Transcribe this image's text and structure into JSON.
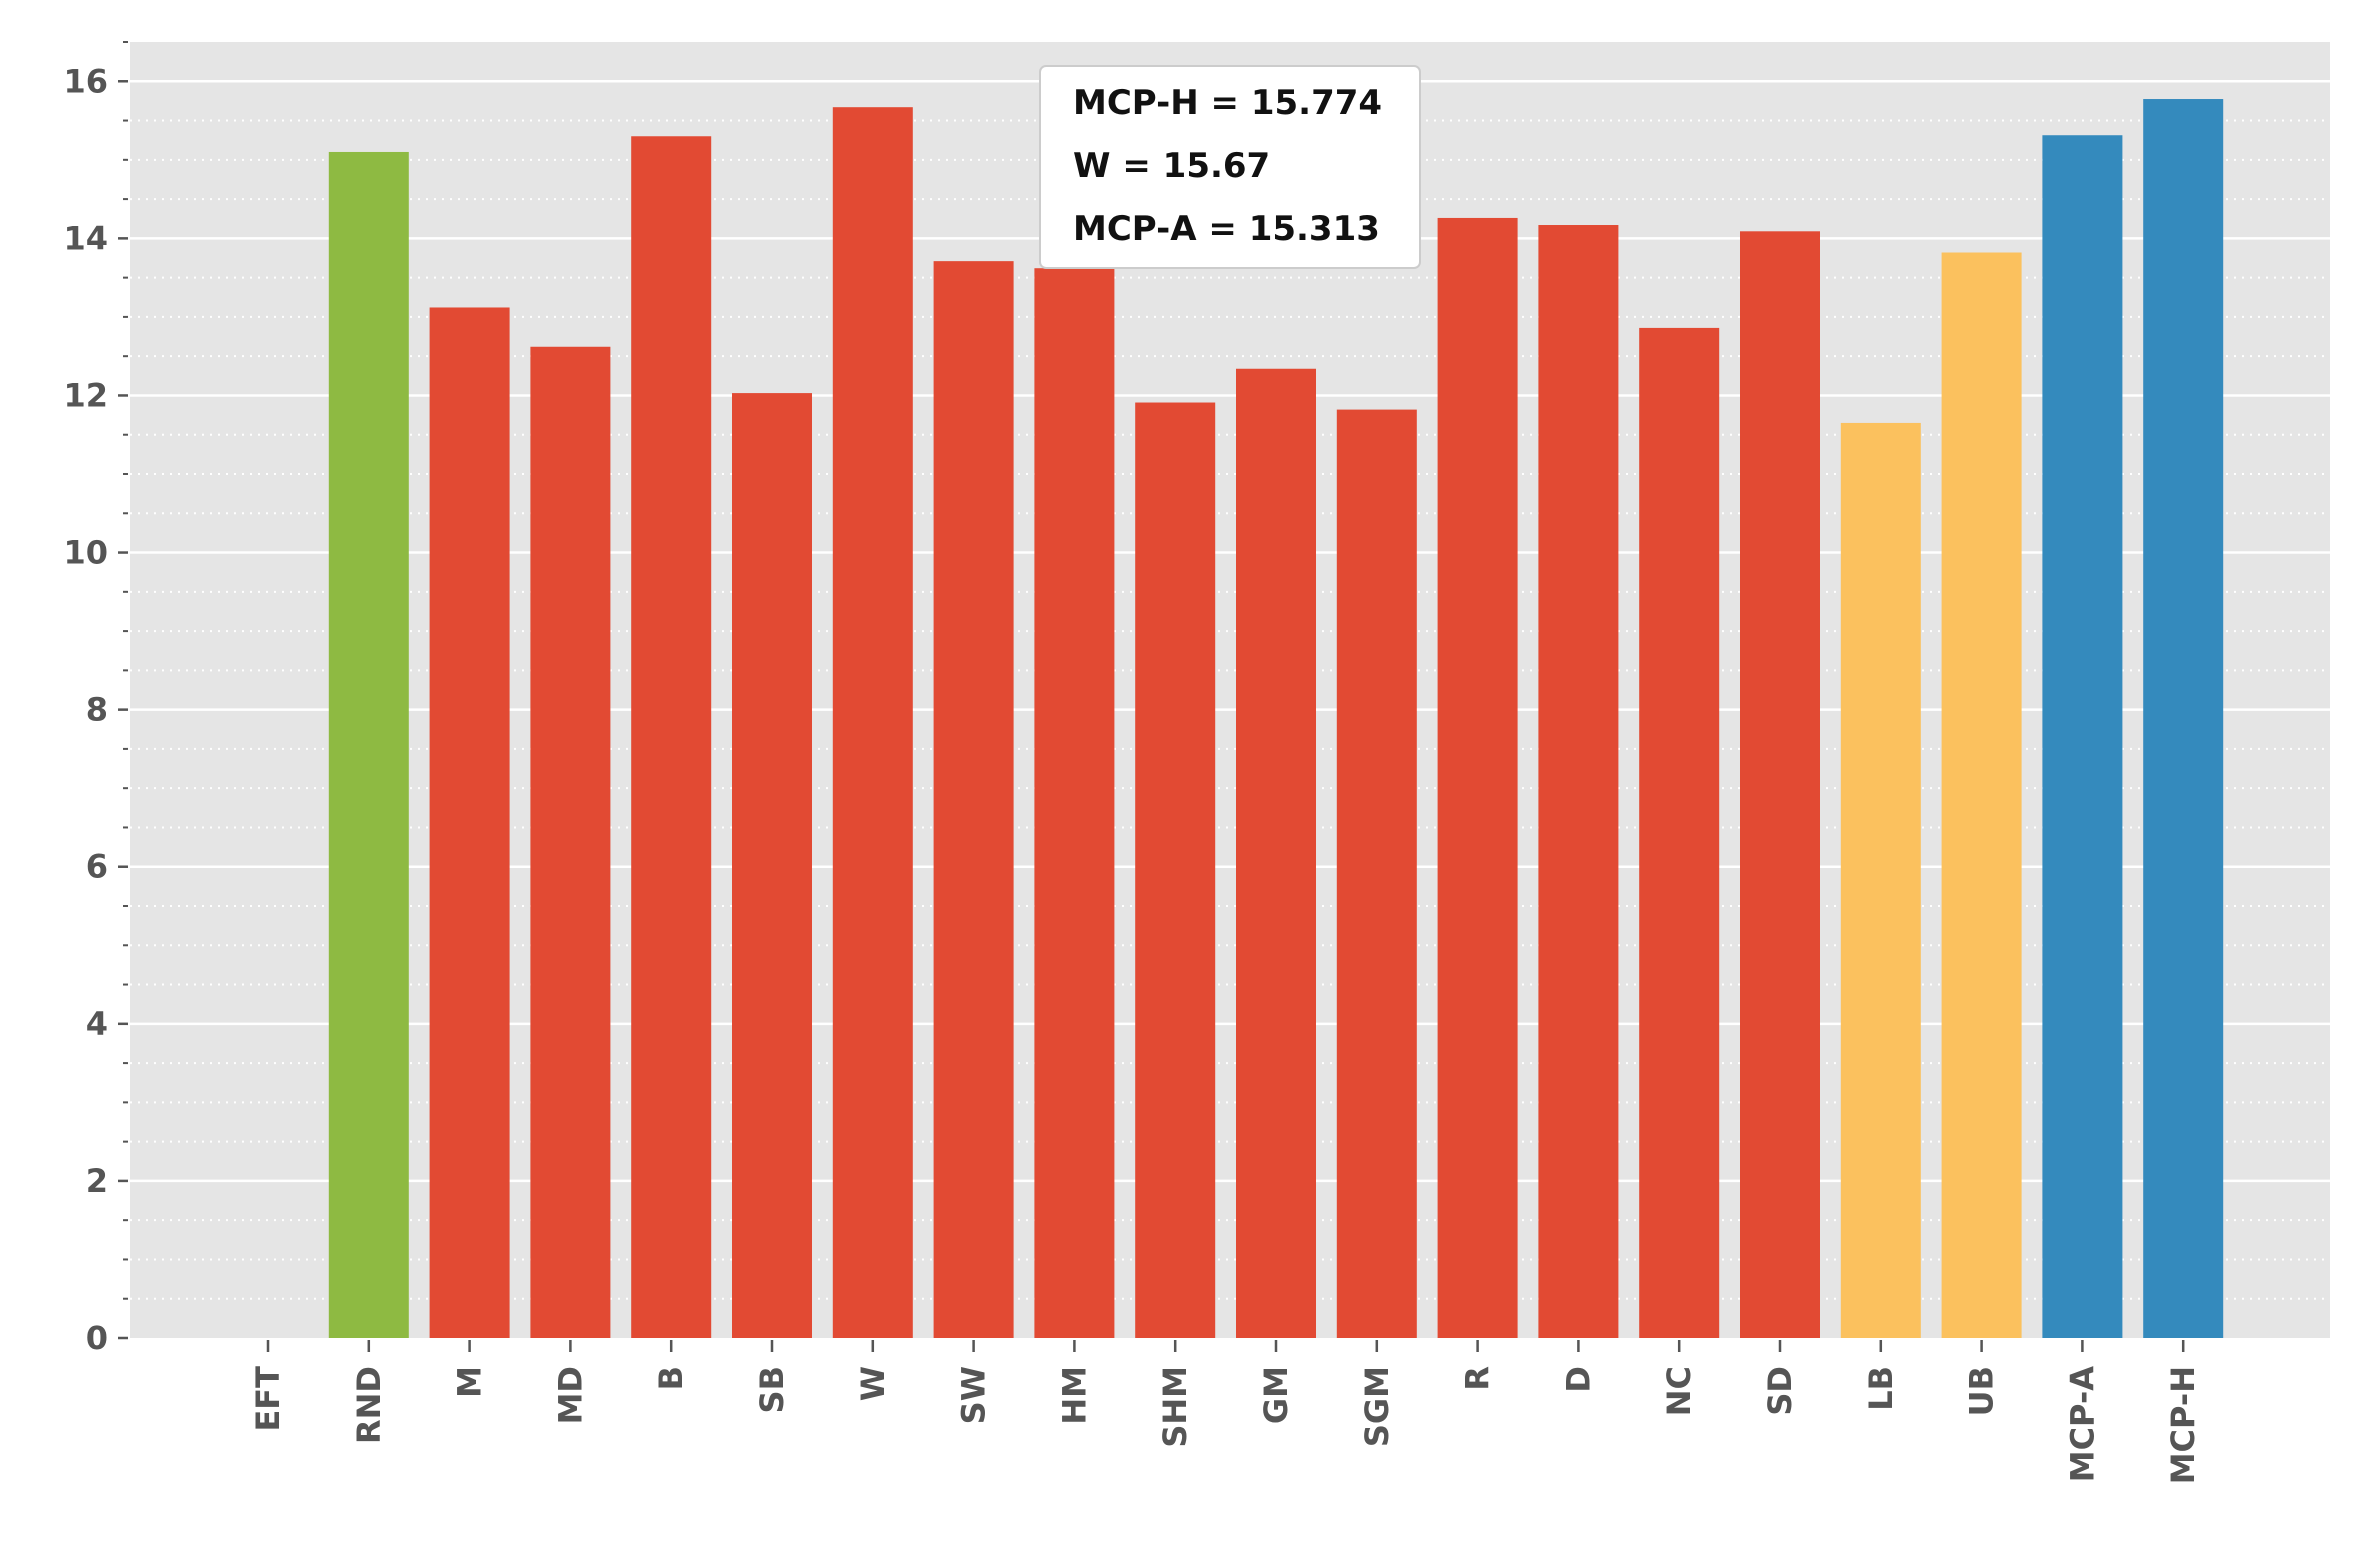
{
  "chart_data": {
    "type": "bar",
    "title": "",
    "xlabel": "",
    "ylabel": "",
    "ylim": [
      0,
      16.5
    ],
    "yticks": [
      0,
      2,
      4,
      6,
      8,
      10,
      12,
      14,
      16
    ],
    "grid": true,
    "categories": [
      "EFT",
      "RND",
      "M",
      "MD",
      "B",
      "SB",
      "W",
      "SW",
      "HM",
      "SHM",
      "GM",
      "SGM",
      "R",
      "D",
      "NC",
      "SD",
      "LB",
      "UB",
      "MCP-A",
      "MCP-H"
    ],
    "values": [
      0,
      15.1,
      13.12,
      12.62,
      15.3,
      12.03,
      15.67,
      13.71,
      13.62,
      11.91,
      12.34,
      11.82,
      14.26,
      14.17,
      12.86,
      14.09,
      11.65,
      13.82,
      15.313,
      15.774
    ],
    "colors": [
      "#e24a33",
      "#8eba42",
      "#e24a33",
      "#e24a33",
      "#e24a33",
      "#e24a33",
      "#e24a33",
      "#e24a33",
      "#e24a33",
      "#e24a33",
      "#e24a33",
      "#e24a33",
      "#e24a33",
      "#e24a33",
      "#e24a33",
      "#e24a33",
      "#fbc15e",
      "#fbc15e",
      "#348abd",
      "#348abd"
    ],
    "annotation_lines": [
      "MCP-H = 15.774",
      "W = 15.67",
      "MCP-A = 15.313"
    ],
    "legend_position": "top-center"
  },
  "style": {
    "plot_background": "#e5e5e5",
    "grid_major_color": "#ffffff",
    "grid_minor_color": "#ffffff",
    "tick_label_color": "#555555",
    "annotation_background": "#ffffff",
    "annotation_border": "#cccccc"
  }
}
